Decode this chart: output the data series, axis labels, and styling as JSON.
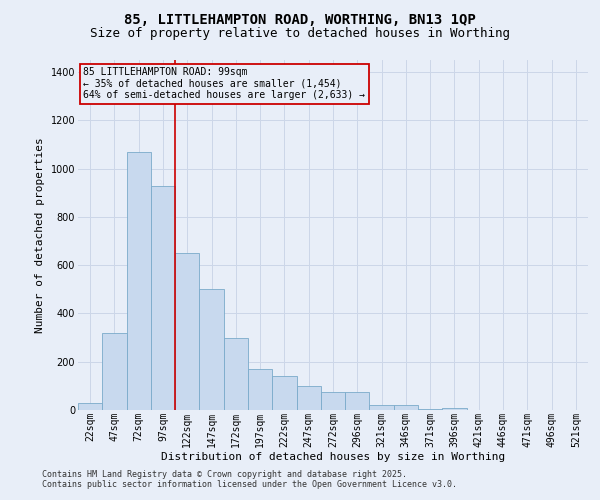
{
  "title": "85, LITTLEHAMPTON ROAD, WORTHING, BN13 1QP",
  "subtitle": "Size of property relative to detached houses in Worthing",
  "xlabel": "Distribution of detached houses by size in Worthing",
  "ylabel": "Number of detached properties",
  "footer_line1": "Contains HM Land Registry data © Crown copyright and database right 2025.",
  "footer_line2": "Contains public sector information licensed under the Open Government Licence v3.0.",
  "bar_color": "#c8d9ee",
  "bar_edge_color": "#7aaaca",
  "grid_color": "#ccd6e8",
  "background_color": "#e8eef8",
  "annotation_box_color": "#cc0000",
  "property_line_color": "#cc0000",
  "annotation_text_line1": "85 LITTLEHAMPTON ROAD: 99sqm",
  "annotation_text_line2": "← 35% of detached houses are smaller (1,454)",
  "annotation_text_line3": "64% of semi-detached houses are larger (2,633) →",
  "categories": [
    "22sqm",
    "47sqm",
    "72sqm",
    "97sqm",
    "122sqm",
    "147sqm",
    "172sqm",
    "197sqm",
    "222sqm",
    "247sqm",
    "272sqm",
    "296sqm",
    "321sqm",
    "346sqm",
    "371sqm",
    "396sqm",
    "421sqm",
    "446sqm",
    "471sqm",
    "496sqm",
    "521sqm"
  ],
  "values": [
    30,
    320,
    1070,
    930,
    650,
    500,
    300,
    170,
    140,
    100,
    75,
    75,
    20,
    20,
    5,
    10,
    2,
    1,
    0,
    0,
    0
  ],
  "ylim": [
    0,
    1450
  ],
  "yticks": [
    0,
    200,
    400,
    600,
    800,
    1000,
    1200,
    1400
  ],
  "property_bar_index": 3,
  "figsize": [
    6.0,
    5.0
  ],
  "dpi": 100,
  "title_fontsize": 10,
  "subtitle_fontsize": 9,
  "ylabel_fontsize": 8,
  "xlabel_fontsize": 8,
  "tick_fontsize": 7,
  "footer_fontsize": 6,
  "annotation_fontsize": 7
}
